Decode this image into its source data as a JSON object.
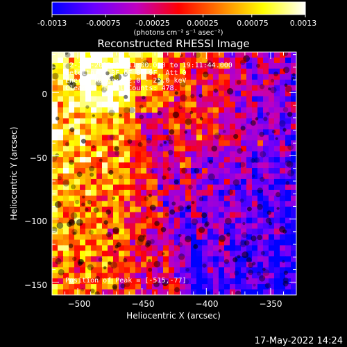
{
  "colorbar": {
    "tick_labels": [
      "-0.0013",
      "-0.00075",
      "-0.00025",
      "0.00025",
      "0.00075",
      "0.0013"
    ],
    "tick_values": [
      -0.0013,
      -0.00075,
      -0.00025,
      0.00025,
      0.00075,
      0.0013
    ],
    "unit_label": "(photons cm⁻² s⁻¹ asec⁻²)",
    "range": [
      -0.0013,
      0.0013
    ],
    "colors": [
      "#0000ff",
      "#6a00ff",
      "#c000c0",
      "#ff0000",
      "#ff8000",
      "#ffff00",
      "#ffffff"
    ]
  },
  "chart_data": {
    "type": "heatmap",
    "title": "Reconstructed RHESSI Image",
    "xlabel": "Heliocentric X (arcsec)",
    "ylabel": "Heliocentric Y (arcsec)",
    "xlim": [
      -520,
      -330
    ],
    "ylim": [
      -160,
      32
    ],
    "xticks": [
      -500,
      -450,
      -400,
      -350
    ],
    "yticks": [
      -150,
      -100,
      -50,
      0
    ],
    "xtick_labels": [
      "−500",
      "−450",
      "−400",
      "−350"
    ],
    "ytick_labels": [
      "−150",
      "−100",
      "−50",
      "0"
    ],
    "peak": [
      -515,
      -77
    ],
    "annotations": [
      "2-Jan-2015 19:11:00.000 to 19:11:44.000",
      "Detectors: 3F 6F 8F 9F, Att 0",
      "Energy Range: 12.0 - 25.0 keV",
      "Clean    Total Counts: 478.",
      "Position of Peak = [-515,-77]"
    ]
  },
  "footer": {
    "timestamp": "17-May-2022 14:24"
  }
}
